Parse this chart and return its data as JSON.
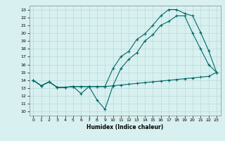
{
  "xlabel": "Humidex (Indice chaleur)",
  "bg_color": "#d8f0f0",
  "grid_color": "#b8dada",
  "line_color": "#006868",
  "xlim": [
    -0.5,
    23.5
  ],
  "ylim": [
    9.5,
    23.5
  ],
  "yticks": [
    10,
    11,
    12,
    13,
    14,
    15,
    16,
    17,
    18,
    19,
    20,
    21,
    22,
    23
  ],
  "xticks": [
    0,
    1,
    2,
    3,
    4,
    5,
    6,
    7,
    8,
    9,
    10,
    11,
    12,
    13,
    14,
    15,
    16,
    17,
    18,
    19,
    20,
    21,
    22,
    23
  ],
  "line1_x": [
    0,
    1,
    2,
    3,
    4,
    5,
    6,
    7,
    8,
    9,
    10,
    11,
    12,
    13,
    14,
    15,
    16,
    17,
    18,
    19,
    20,
    21,
    22,
    23
  ],
  "line1_y": [
    14,
    13.3,
    13.8,
    13.1,
    13.1,
    13.2,
    13.2,
    13.2,
    13.2,
    13.2,
    13.3,
    13.4,
    13.5,
    13.6,
    13.7,
    13.8,
    13.9,
    14.0,
    14.1,
    14.2,
    14.3,
    14.4,
    14.5,
    15.0
  ],
  "line2_x": [
    0,
    1,
    2,
    3,
    4,
    5,
    6,
    7,
    8,
    9,
    10,
    11,
    12,
    13,
    14,
    15,
    16,
    17,
    18,
    19,
    20,
    21,
    22,
    23
  ],
  "line2_y": [
    14,
    13.3,
    13.8,
    13.1,
    13.1,
    13.2,
    12.3,
    13.2,
    11.5,
    10.3,
    13.3,
    15.5,
    16.7,
    17.5,
    19.0,
    19.8,
    21.0,
    21.5,
    22.2,
    22.2,
    20.0,
    18.0,
    16.0,
    15.0
  ],
  "line3_x": [
    0,
    1,
    2,
    3,
    4,
    5,
    6,
    7,
    8,
    9,
    10,
    11,
    12,
    13,
    14,
    15,
    16,
    17,
    18,
    19,
    20,
    21,
    22,
    23
  ],
  "line3_y": [
    14,
    13.3,
    13.8,
    13.1,
    13.1,
    13.2,
    13.2,
    13.2,
    13.2,
    13.2,
    15.5,
    17.0,
    17.7,
    19.2,
    19.9,
    21.0,
    22.2,
    23.0,
    23.0,
    22.5,
    22.2,
    20.1,
    17.8,
    15.0
  ]
}
